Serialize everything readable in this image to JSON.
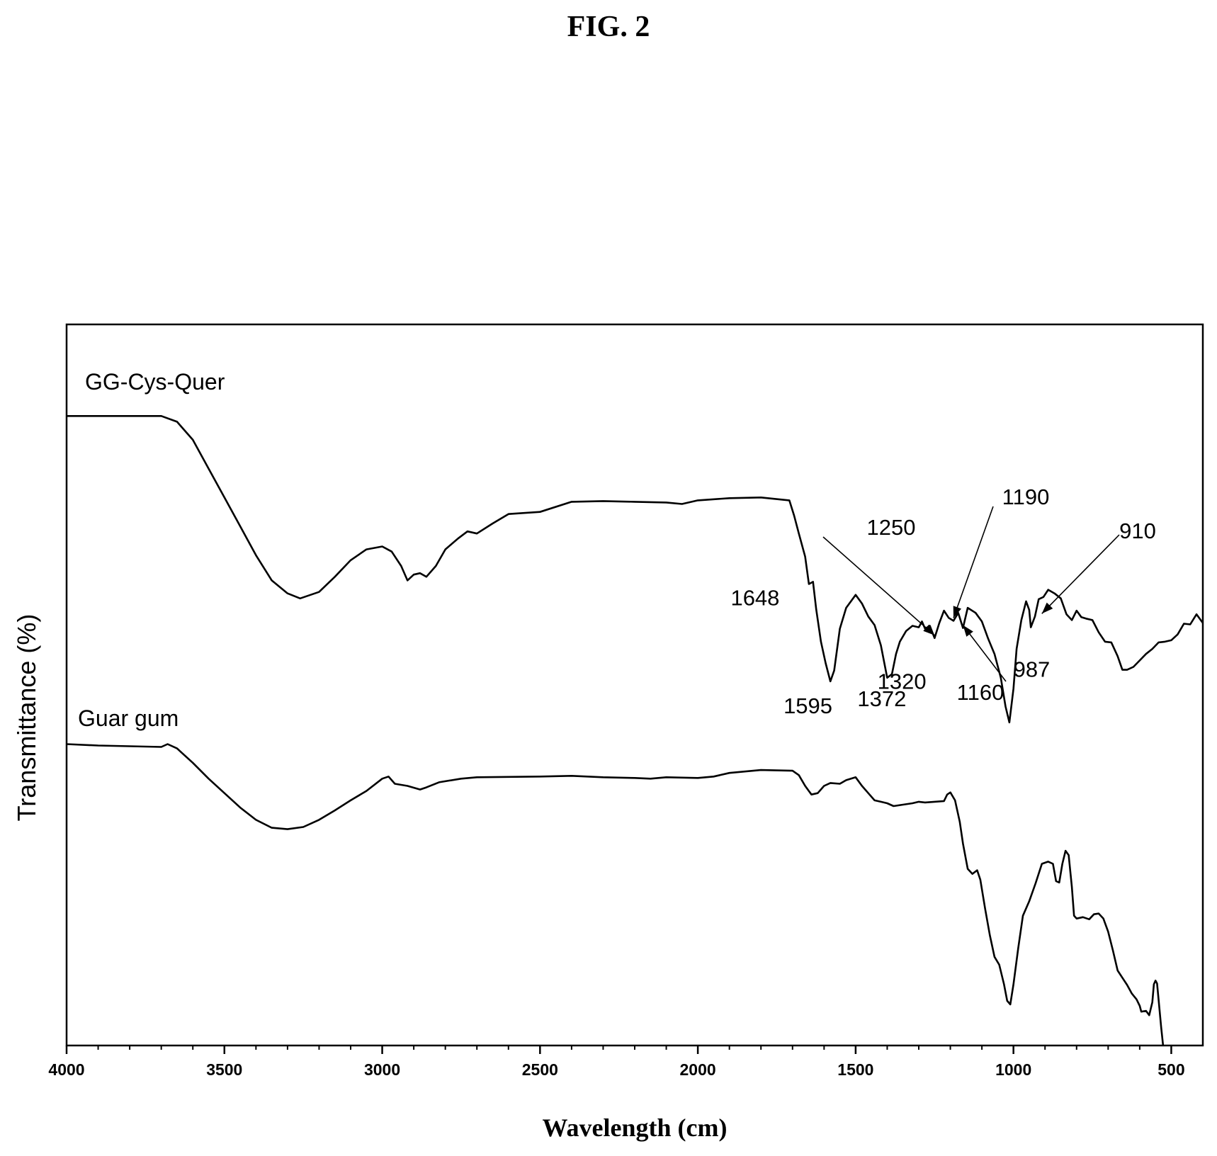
{
  "figure": {
    "title": "FIG. 2"
  },
  "chart_data": {
    "type": "line",
    "title": "FIG. 2",
    "xlabel": "Wavelength (cm)",
    "ylabel": "Transmittance (%)",
    "xlim": [
      4000,
      400
    ],
    "x_reversed": true,
    "ylim": [
      0,
      100
    ],
    "xticks": [
      4000,
      3500,
      3000,
      2500,
      2000,
      1500,
      1000,
      500
    ],
    "grid": false,
    "series": [
      {
        "name": "GG-Cys-Quer",
        "points": [
          [
            4000,
            87.3
          ],
          [
            3900,
            87.3
          ],
          [
            3800,
            87.3
          ],
          [
            3700,
            87.3
          ],
          [
            3650,
            86.5
          ],
          [
            3600,
            84
          ],
          [
            3550,
            80
          ],
          [
            3500,
            76
          ],
          [
            3450,
            72
          ],
          [
            3400,
            68
          ],
          [
            3350,
            64.5
          ],
          [
            3300,
            62.7
          ],
          [
            3260,
            62
          ],
          [
            3200,
            62.9
          ],
          [
            3150,
            65
          ],
          [
            3100,
            67.3
          ],
          [
            3050,
            68.8
          ],
          [
            3000,
            69.2
          ],
          [
            2970,
            68.5
          ],
          [
            2940,
            66.5
          ],
          [
            2920,
            64.5
          ],
          [
            2900,
            65.3
          ],
          [
            2880,
            65.5
          ],
          [
            2860,
            65
          ],
          [
            2830,
            66.5
          ],
          [
            2800,
            68.8
          ],
          [
            2760,
            70.3
          ],
          [
            2730,
            71.3
          ],
          [
            2700,
            71
          ],
          [
            2650,
            72.4
          ],
          [
            2600,
            73.7
          ],
          [
            2500,
            74
          ],
          [
            2400,
            75.4
          ],
          [
            2300,
            75.5
          ],
          [
            2200,
            75.4
          ],
          [
            2100,
            75.3
          ],
          [
            2050,
            75.1
          ],
          [
            2000,
            75.6
          ],
          [
            1900,
            75.9
          ],
          [
            1800,
            76
          ],
          [
            1710,
            75.6
          ],
          [
            1695,
            73.5
          ],
          [
            1680,
            71
          ],
          [
            1660,
            67.8
          ],
          [
            1648,
            64
          ],
          [
            1635,
            64.3
          ],
          [
            1625,
            60.5
          ],
          [
            1610,
            56
          ],
          [
            1595,
            53
          ],
          [
            1580,
            50.5
          ],
          [
            1568,
            52
          ],
          [
            1550,
            57.8
          ],
          [
            1530,
            60.7
          ],
          [
            1500,
            62.5
          ],
          [
            1480,
            61.3
          ],
          [
            1460,
            59.5
          ],
          [
            1440,
            58.3
          ],
          [
            1420,
            55.5
          ],
          [
            1400,
            51
          ],
          [
            1385,
            51.5
          ],
          [
            1372,
            54.3
          ],
          [
            1360,
            56
          ],
          [
            1340,
            57.5
          ],
          [
            1320,
            58.2
          ],
          [
            1300,
            58
          ],
          [
            1290,
            58.8
          ],
          [
            1280,
            57.8
          ],
          [
            1265,
            58.2
          ],
          [
            1250,
            56.5
          ],
          [
            1235,
            58.6
          ],
          [
            1220,
            60.3
          ],
          [
            1205,
            59.3
          ],
          [
            1190,
            58.9
          ],
          [
            1175,
            60
          ],
          [
            1160,
            57.9
          ],
          [
            1145,
            60.7
          ],
          [
            1120,
            60
          ],
          [
            1100,
            58.8
          ],
          [
            1080,
            56.4
          ],
          [
            1060,
            54.3
          ],
          [
            1040,
            51
          ],
          [
            1025,
            47
          ],
          [
            1013,
            44.8
          ],
          [
            1000,
            49.5
          ],
          [
            990,
            55
          ],
          [
            975,
            59
          ],
          [
            960,
            61.6
          ],
          [
            950,
            60.4
          ],
          [
            945,
            58
          ],
          [
            932,
            59.5
          ],
          [
            920,
            61.9
          ],
          [
            905,
            62.2
          ],
          [
            890,
            63.2
          ],
          [
            870,
            62.7
          ],
          [
            850,
            62
          ],
          [
            832,
            59.8
          ],
          [
            815,
            59
          ],
          [
            800,
            60.3
          ],
          [
            785,
            59.4
          ],
          [
            770,
            59.2
          ],
          [
            750,
            59
          ],
          [
            730,
            57.3
          ],
          [
            710,
            56
          ],
          [
            690,
            55.9
          ],
          [
            670,
            54
          ],
          [
            655,
            52.1
          ],
          [
            640,
            52.1
          ],
          [
            620,
            52.5
          ],
          [
            600,
            53.4
          ],
          [
            580,
            54.3
          ],
          [
            560,
            55
          ],
          [
            540,
            55.9
          ],
          [
            520,
            56
          ],
          [
            500,
            56.2
          ],
          [
            480,
            57
          ],
          [
            460,
            58.5
          ],
          [
            440,
            58.4
          ],
          [
            420,
            59.8
          ],
          [
            400,
            58.6
          ]
        ]
      },
      {
        "name": "Guar gum",
        "points": [
          [
            4000,
            41.8
          ],
          [
            3900,
            41.6
          ],
          [
            3800,
            41.5
          ],
          [
            3700,
            41.4
          ],
          [
            3680,
            41.8
          ],
          [
            3650,
            41.2
          ],
          [
            3600,
            39.2
          ],
          [
            3550,
            37
          ],
          [
            3500,
            35
          ],
          [
            3450,
            33
          ],
          [
            3400,
            31.3
          ],
          [
            3350,
            30.2
          ],
          [
            3300,
            30
          ],
          [
            3250,
            30.3
          ],
          [
            3200,
            31.3
          ],
          [
            3150,
            32.6
          ],
          [
            3100,
            34
          ],
          [
            3050,
            35.3
          ],
          [
            3000,
            37
          ],
          [
            2980,
            37.3
          ],
          [
            2960,
            36.3
          ],
          [
            2920,
            36
          ],
          [
            2880,
            35.5
          ],
          [
            2860,
            35.8
          ],
          [
            2820,
            36.5
          ],
          [
            2750,
            37
          ],
          [
            2700,
            37.2
          ],
          [
            2500,
            37.3
          ],
          [
            2400,
            37.4
          ],
          [
            2300,
            37.2
          ],
          [
            2200,
            37.1
          ],
          [
            2150,
            37
          ],
          [
            2100,
            37.2
          ],
          [
            2000,
            37.1
          ],
          [
            1950,
            37.3
          ],
          [
            1900,
            37.8
          ],
          [
            1800,
            38.2
          ],
          [
            1700,
            38.1
          ],
          [
            1680,
            37.5
          ],
          [
            1660,
            36
          ],
          [
            1640,
            34.8
          ],
          [
            1620,
            35
          ],
          [
            1600,
            36
          ],
          [
            1580,
            36.4
          ],
          [
            1550,
            36.3
          ],
          [
            1530,
            36.8
          ],
          [
            1500,
            37.2
          ],
          [
            1480,
            36
          ],
          [
            1460,
            35
          ],
          [
            1440,
            34
          ],
          [
            1420,
            33.8
          ],
          [
            1400,
            33.6
          ],
          [
            1380,
            33.2
          ],
          [
            1350,
            33.4
          ],
          [
            1320,
            33.6
          ],
          [
            1300,
            33.8
          ],
          [
            1280,
            33.7
          ],
          [
            1250,
            33.8
          ],
          [
            1220,
            33.9
          ],
          [
            1210,
            34.8
          ],
          [
            1200,
            35.1
          ],
          [
            1185,
            34
          ],
          [
            1170,
            31
          ],
          [
            1160,
            28
          ],
          [
            1145,
            24.5
          ],
          [
            1130,
            23.8
          ],
          [
            1115,
            24.3
          ],
          [
            1105,
            23
          ],
          [
            1090,
            19
          ],
          [
            1075,
            15.3
          ],
          [
            1060,
            12.3
          ],
          [
            1045,
            11.2
          ],
          [
            1030,
            8.5
          ],
          [
            1020,
            6.2
          ],
          [
            1010,
            5.7
          ],
          [
            1000,
            8.5
          ],
          [
            985,
            13.5
          ],
          [
            970,
            18
          ],
          [
            950,
            20
          ],
          [
            930,
            22.5
          ],
          [
            910,
            25.2
          ],
          [
            890,
            25.5
          ],
          [
            875,
            25.2
          ],
          [
            865,
            22.8
          ],
          [
            855,
            22.6
          ],
          [
            845,
            25.2
          ],
          [
            835,
            27
          ],
          [
            825,
            26.4
          ],
          [
            815,
            22
          ],
          [
            808,
            18
          ],
          [
            800,
            17.6
          ],
          [
            780,
            17.8
          ],
          [
            760,
            17.5
          ],
          [
            745,
            18.2
          ],
          [
            730,
            18.3
          ],
          [
            715,
            17.6
          ],
          [
            700,
            15.8
          ],
          [
            685,
            13.2
          ],
          [
            670,
            10.4
          ],
          [
            655,
            9.4
          ],
          [
            640,
            8.4
          ],
          [
            625,
            7.2
          ],
          [
            610,
            6.4
          ],
          [
            600,
            5.5
          ],
          [
            595,
            4.7
          ],
          [
            580,
            4.8
          ],
          [
            570,
            4.2
          ],
          [
            560,
            6
          ],
          [
            555,
            8.5
          ],
          [
            550,
            9
          ],
          [
            545,
            8.6
          ],
          [
            540,
            6.3
          ],
          [
            532,
            2.5
          ],
          [
            526,
            0
          ]
        ]
      }
    ],
    "annotations": [
      {
        "text": "1648",
        "x": 1648,
        "y": 64,
        "arrow": false
      },
      {
        "text": "1595",
        "x": 1595,
        "y": 50.5,
        "arrow": false
      },
      {
        "text": "1372",
        "x": 1372,
        "y": 51,
        "arrow": false
      },
      {
        "text": "1320",
        "x": 1320,
        "y": 57.8,
        "arrow": false
      },
      {
        "text": "1250",
        "x": 1250,
        "y": 56.5,
        "arrow": true
      },
      {
        "text": "1190",
        "x": 1190,
        "y": 58.9,
        "arrow": true
      },
      {
        "text": "1160",
        "x": 1160,
        "y": 57.9,
        "arrow": true
      },
      {
        "text": "987",
        "x": 987,
        "y": 58,
        "arrow": false
      },
      {
        "text": "910",
        "x": 910,
        "y": 59.5,
        "arrow": true
      }
    ]
  }
}
